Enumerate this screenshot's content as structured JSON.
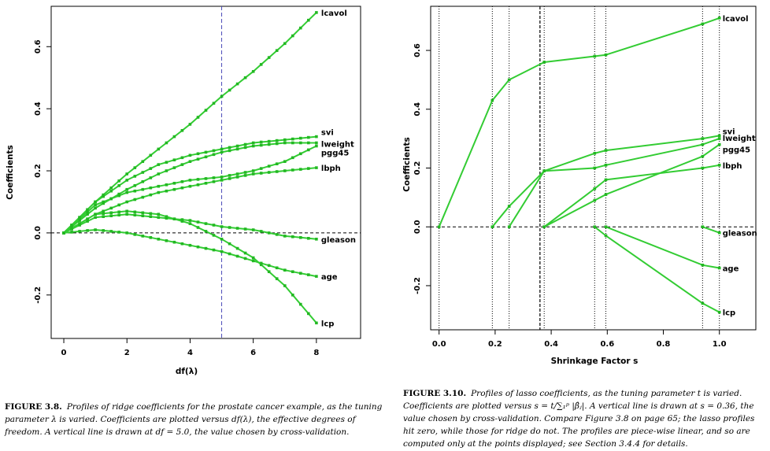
{
  "figures": [
    {
      "id": "ridge",
      "chart_data": {
        "type": "line",
        "title": "",
        "xlabel": "df(λ)",
        "ylabel": "Coefficients",
        "xlim": [
          -0.4,
          9.4
        ],
        "ylim": [
          -0.34,
          0.73
        ],
        "xticks": [
          0,
          2,
          4,
          6,
          8
        ],
        "yticks": [
          -0.2,
          0.0,
          0.2,
          0.4,
          0.6
        ],
        "xtick_labels": [
          "0",
          "2",
          "4",
          "6",
          "8"
        ],
        "ytick_labels": [
          "-0.2",
          "0.0",
          "0.2",
          "0.4",
          "0.6"
        ],
        "vline": 5.0,
        "hline": 0.0,
        "grid": false,
        "series": [
          {
            "name": "lcavol",
            "x": [
              0,
              1,
              2,
              3,
              4,
              5,
              6,
              7,
              8
            ],
            "y": [
              0,
              0.1,
              0.19,
              0.27,
              0.35,
              0.44,
              0.52,
              0.61,
              0.71
            ]
          },
          {
            "name": "svi",
            "x": [
              0,
              1,
              2,
              3,
              4,
              5,
              6,
              7,
              8
            ],
            "y": [
              0,
              0.1,
              0.17,
              0.22,
              0.25,
              0.27,
              0.29,
              0.3,
              0.31
            ]
          },
          {
            "name": "lweight",
            "x": [
              0,
              1,
              2,
              3,
              4,
              5,
              6,
              7,
              8
            ],
            "y": [
              0,
              0.08,
              0.14,
              0.19,
              0.23,
              0.26,
              0.28,
              0.29,
              0.29
            ]
          },
          {
            "name": "pgg45",
            "x": [
              0,
              1,
              2,
              3,
              4,
              5,
              6,
              7,
              8
            ],
            "y": [
              0,
              0.09,
              0.13,
              0.15,
              0.17,
              0.18,
              0.2,
              0.23,
              0.28
            ]
          },
          {
            "name": "lbph",
            "x": [
              0,
              1,
              2,
              3,
              4,
              5,
              6,
              7,
              8
            ],
            "y": [
              0,
              0.06,
              0.1,
              0.13,
              0.15,
              0.17,
              0.19,
              0.2,
              0.21
            ]
          },
          {
            "name": "gleason",
            "x": [
              0,
              1,
              2,
              3,
              4,
              5,
              6,
              7,
              8
            ],
            "y": [
              0,
              0.05,
              0.06,
              0.05,
              0.04,
              0.02,
              0.01,
              -0.01,
              -0.02
            ]
          },
          {
            "name": "age",
            "x": [
              0,
              1,
              2,
              3,
              4,
              5,
              6,
              7,
              8
            ],
            "y": [
              0,
              0.01,
              0.0,
              -0.02,
              -0.04,
              -0.06,
              -0.09,
              -0.12,
              -0.14
            ]
          },
          {
            "name": "lcp",
            "x": [
              0,
              1,
              2,
              3,
              4,
              5,
              6,
              7,
              8
            ],
            "y": [
              0,
              0.06,
              0.07,
              0.06,
              0.03,
              -0.02,
              -0.08,
              -0.17,
              -0.29
            ]
          }
        ]
      },
      "caption": {
        "label": "FIGURE 3.8.",
        "text": "Profiles of ridge coefficients for the prostate cancer example, as the tuning parameter λ is varied. Coefficients are plotted versus df(λ), the effective degrees of freedom. A vertical line is drawn at df = 5.0, the value chosen by cross-validation."
      }
    },
    {
      "id": "lasso",
      "chart_data": {
        "type": "line",
        "title": "",
        "xlabel": "Shrinkage Factor s",
        "ylabel": "Coefficients",
        "xlim": [
          -0.03,
          1.13
        ],
        "ylim": [
          -0.35,
          0.75
        ],
        "xticks": [
          0.0,
          0.2,
          0.4,
          0.6,
          0.8,
          1.0
        ],
        "yticks": [
          -0.2,
          0.0,
          0.2,
          0.4,
          0.6
        ],
        "xtick_labels": [
          "0.0",
          "0.2",
          "0.4",
          "0.6",
          "0.8",
          "1.0"
        ],
        "ytick_labels": [
          "-0.2",
          "0.0",
          "0.2",
          "0.4",
          "0.6"
        ],
        "vlines_dotted": [
          0.0,
          0.19,
          0.25,
          0.375,
          0.555,
          0.595,
          0.94,
          1.0
        ],
        "vline": 0.36,
        "hline": 0.0,
        "grid": false,
        "series": [
          {
            "name": "lcavol",
            "x": [
              0,
              0.19,
              0.25,
              0.375,
              0.555,
              0.595,
              0.94,
              1.0
            ],
            "y": [
              0,
              0.43,
              0.5,
              0.56,
              0.58,
              0.585,
              0.69,
              0.71
            ]
          },
          {
            "name": "svi",
            "x": [
              0.25,
              0.375,
              0.555,
              0.595,
              0.94,
              1.0
            ],
            "y": [
              0,
              0.19,
              0.25,
              0.26,
              0.3,
              0.31
            ]
          },
          {
            "name": "lweight",
            "x": [
              0.19,
              0.25,
              0.375,
              0.555,
              0.595,
              0.94,
              1.0
            ],
            "y": [
              0,
              0.07,
              0.19,
              0.2,
              0.21,
              0.28,
              0.3
            ]
          },
          {
            "name": "pgg45",
            "x": [
              0.375,
              0.555,
              0.595,
              0.94,
              1.0
            ],
            "y": [
              0,
              0.09,
              0.11,
              0.24,
              0.28
            ]
          },
          {
            "name": "lbph",
            "x": [
              0.375,
              0.555,
              0.595,
              0.94,
              1.0
            ],
            "y": [
              0,
              0.13,
              0.16,
              0.2,
              0.21
            ]
          },
          {
            "name": "gleason",
            "x": [
              0.94,
              1.0
            ],
            "y": [
              0,
              -0.02
            ]
          },
          {
            "name": "age",
            "x": [
              0.595,
              0.94,
              1.0
            ],
            "y": [
              0,
              -0.13,
              -0.14
            ]
          },
          {
            "name": "lcp",
            "x": [
              0.555,
              0.595,
              0.94,
              1.0
            ],
            "y": [
              0,
              -0.03,
              -0.26,
              -0.29
            ]
          }
        ]
      },
      "caption": {
        "label": "FIGURE 3.10.",
        "text": "Profiles of lasso coefficients, as the tuning parameter t is varied. Coefficients are plotted versus s = t/∑₁ᵖ |β̂ⱼ|. A vertical line is drawn at s = 0.36, the value chosen by cross-validation. Compare Figure 3.8 on page 65; the lasso profiles hit zero, while those for ridge do not. The profiles are piece-wise linear, and so are computed only at the points displayed; see Section 3.4.4 for details."
      }
    }
  ],
  "colors": {
    "line": "#33cc33",
    "marker": "#22b822",
    "vline_ridge": "#4b4bb8",
    "axis": "#000000",
    "dashed": "#000000"
  }
}
